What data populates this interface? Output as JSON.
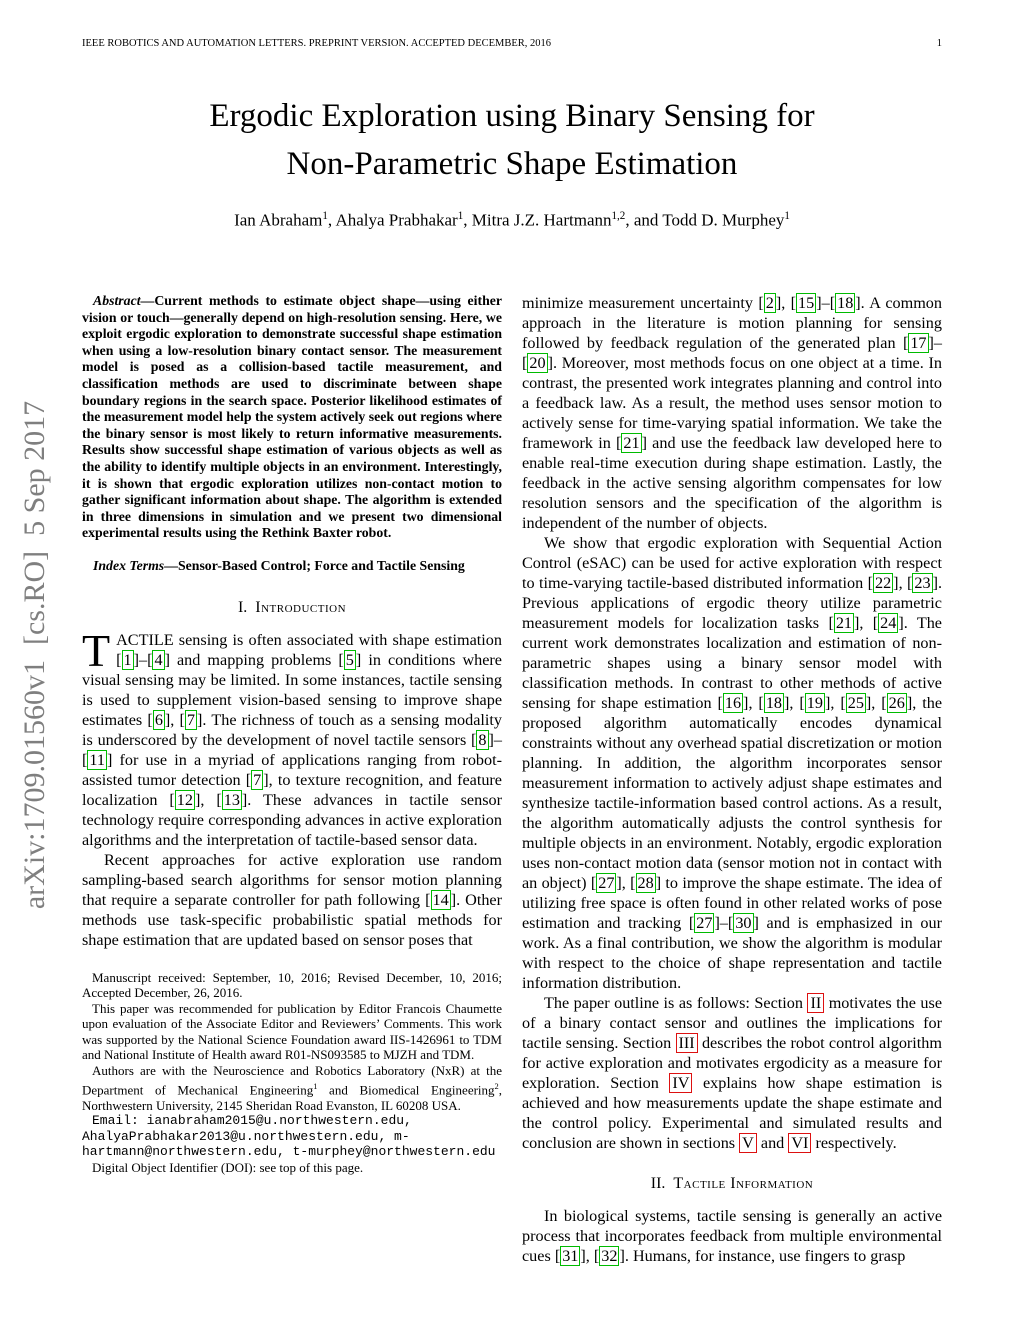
{
  "page": {
    "header_left": "IEEE ROBOTICS AND AUTOMATION LETTERS. PREPRINT VERSION. ACCEPTED DECEMBER, 2016",
    "page_number": "1",
    "arxiv_watermark": "arXiv:1709.01560v1  [cs.RO]  5 Sep 2017"
  },
  "title": {
    "lines": [
      "Ergodic Exploration using Binary Sensing for",
      "Non-Parametric Shape Estimation"
    ]
  },
  "authors": "Ian Abraham^^1^^, Ahalya Prabhakar^^1^^, Mitra J.Z. Hartmann^^1,2^^, and Todd D. Murphey^^1^^",
  "abstract": {
    "lead": "Abstract",
    "text": "—Current methods to estimate object shape—using either vision or touch—generally depend on high-resolution sensing. Here, we exploit ergodic exploration to demonstrate successful shape estimation when using a low-resolution binary contact sensor. The measurement model is posed as a collision-based tactile measurement, and classification methods are used to discriminate between shape boundary regions in the search space. Posterior likelihood estimates of the measurement model help the system actively seek out regions where the binary sensor is most likely to return informative measurements. Results show successful shape estimation of various objects as well as the ability to identify multiple objects in an environment. Interestingly, it is shown that ergodic exploration utilizes non-contact motion to gather significant information about shape. The algorithm is extended in three dimensions in simulation and we present two dimensional experimental results using the Rethink Baxter robot."
  },
  "index_terms": {
    "lead": "Index Terms",
    "text": "—Sensor-Based Control; Force and Tactile Sensing"
  },
  "section1": {
    "number": "I.",
    "title": "Introduction"
  },
  "section2": {
    "number": "II.",
    "title": "Tactile Information"
  },
  "left_column": {
    "dropcap": "T",
    "para1": "ACTILE sensing is often associated with shape estimation [[1]]–[[4]] and mapping problems [[5]] in conditions where visual sensing may be limited. In some instances, tactile sensing is used to supplement vision-based sensing to improve shape estimates [[6]], [[7]]. The richness of touch as a sensing modality is underscored by the development of novel tactile sensors [[8]]–[[11]] for use in a myriad of applications ranging from robot-assisted tumor detection [[7]], to texture recognition, and feature localization [[12]], [[13]]. These advances in tactile sensor technology require corresponding advances in active exploration algorithms and the interpretation of tactile-based sensor data.",
    "para2": "Recent approaches for active exploration use random sampling-based search algorithms for sensor motion planning that require a separate controller for path following [[14]]. Other methods use task-specific probabilistic spatial methods for shape estimation that are updated based on sensor poses that"
  },
  "right_column": {
    "para1": "minimize measurement uncertainty [[2]], [[15]]–[[18]]. A common approach in the literature is motion planning for sensing followed by feedback regulation of the generated plan [[17]]–[[20]]. Moreover, most methods focus on one object at a time. In contrast, the presented work integrates planning and control into a feedback law. As a result, the method uses sensor motion to actively sense for time-varying spatial information. We take the framework in [[21]] and use the feedback law developed here to enable real-time execution during shape estimation. Lastly, the feedback in the active sensing algorithm compensates for low resolution sensors and the specification of the algorithm is independent of the number of objects.",
    "para2": "We show that ergodic exploration with Sequential Action Control (eSAC) can be used for active exploration with respect to time-varying tactile-based distributed information [[22]], [[23]]. Previous applications of ergodic theory utilize parametric measurement models for localization tasks [[21]], [[24]]. The current work demonstrates localization and estimation of non-parametric shapes using a binary sensor model with classification methods. In contrast to other methods of active sensing for shape estimation [[16]], [[18]], [[19]], [[25]], [[26]], the proposed algorithm automatically encodes dynamical constraints without any overhead spatial discretization or motion planning. In addition, the algorithm incorporates sensor measurement information to actively adjust shape estimates and synthesize tactile-information based control actions. As a result, the algorithm automatically adjusts the control synthesis for multiple objects in an environment. Notably, ergodic exploration uses non-contact motion data (sensor motion not in contact with an object) [[27]], [[28]] to improve the shape estimate. The idea of utilizing free space is often found in other related works of pose estimation and tracking [[27]]–[[30]] and is emphasized in our work. As a final contribution, we show the algorithm is modular with respect to the choice of shape representation and tactile information distribution.",
    "para3": "The paper outline is as follows: Section {{II}} motivates the use of a binary contact sensor and outlines the implications for tactile sensing. Section {{III}} describes the robot control algorithm for active exploration and motivates ergodicity as a measure for exploration. Section {{IV}} explains how shape estimation is achieved and how measurements update the shape estimate and the control policy. Experimental and simulated results and conclusion are shown in sections {{V}} and {{VI}} respectively.",
    "para4": "In biological systems, tactile sensing is generally an active process that incorporates feedback from multiple environmental cues [[31]], [[32]]. Humans, for instance, use fingers to grasp"
  },
  "footnotes": {
    "fn1": "Manuscript received: September, 10, 2016; Revised December, 10, 2016; Accepted December, 26, 2016.",
    "fn2": "This paper was recommended for publication by Editor Francois Chaumette upon evaluation of the Associate Editor and Reviewers’ Comments. This work was supported by the National Science Foundation award IIS-1426961 to TDM and National Institute of Health award R01-NS093585 to MJZH and TDM.",
    "fn3": "Authors are with the Neuroscience and Robotics Laboratory (NxR) at the Department of Mechanical Engineering^^1^^ and Biomedical Engineering^^2^^, Northwestern University, 2145 Sheridan Road Evanston, IL 60208 USA.",
    "emails": "Email: ianabraham2015@u.northwestern.edu, AhalyaPrabhakar2013@u.northwestern.edu, m-hartmann@northwestern.edu, t-murphey@northwestern.edu",
    "fn4": "Digital Object Identifier (DOI): see top of this page."
  },
  "colors": {
    "citation_box": "#00bb00",
    "section_box": "#dd1111",
    "watermark_gray": "#7f7f7f"
  }
}
